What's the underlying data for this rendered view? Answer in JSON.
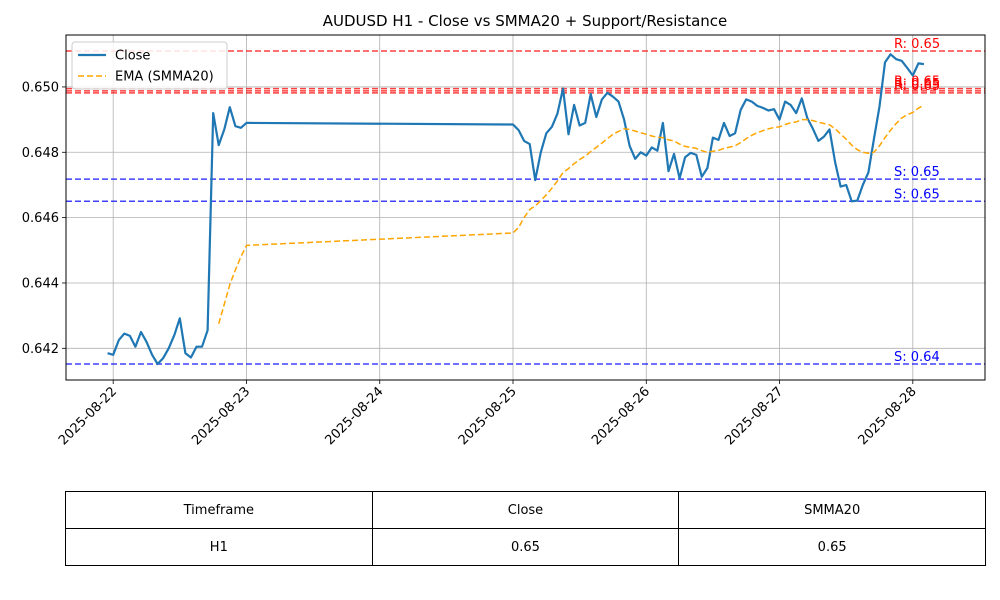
{
  "chart_data": {
    "type": "line",
    "title": "AUDUSD H1 - Close vs SMMA20 + Support/Resistance",
    "xlabel": "",
    "ylabel": "",
    "x_tick_labels": [
      "2025-08-22",
      "2025-08-23",
      "2025-08-24",
      "2025-08-25",
      "2025-08-26",
      "2025-08-27",
      "2025-08-28"
    ],
    "y_tick_labels": [
      "0.642",
      "0.644",
      "0.646",
      "0.648",
      "0.650"
    ],
    "ylim": [
      0.64103,
      0.65159
    ],
    "xlim": [
      "2025-08-21 15:30",
      "2025-08-28 13:00"
    ],
    "grid": true,
    "legend_position": "top-left",
    "series": [
      {
        "name": "Close",
        "color": "#1f77b4",
        "style": "solid",
        "points": [
          [
            "2025-08-21 23:00",
            0.64185
          ],
          [
            "2025-08-22 00:00",
            0.6418
          ],
          [
            "2025-08-22 01:00",
            0.64225
          ],
          [
            "2025-08-22 02:00",
            0.64245
          ],
          [
            "2025-08-22 03:00",
            0.64238
          ],
          [
            "2025-08-22 04:00",
            0.64205
          ],
          [
            "2025-08-22 05:00",
            0.6425
          ],
          [
            "2025-08-22 06:00",
            0.6422
          ],
          [
            "2025-08-22 07:00",
            0.6418
          ],
          [
            "2025-08-22 08:00",
            0.64152
          ],
          [
            "2025-08-22 09:00",
            0.6417
          ],
          [
            "2025-08-22 10:00",
            0.642
          ],
          [
            "2025-08-22 11:00",
            0.6424
          ],
          [
            "2025-08-22 12:00",
            0.64292
          ],
          [
            "2025-08-22 13:00",
            0.64185
          ],
          [
            "2025-08-22 14:00",
            0.64172
          ],
          [
            "2025-08-22 15:00",
            0.64205
          ],
          [
            "2025-08-22 16:00",
            0.64205
          ],
          [
            "2025-08-22 17:00",
            0.64255
          ],
          [
            "2025-08-22 18:00",
            0.6492
          ],
          [
            "2025-08-22 19:00",
            0.64822
          ],
          [
            "2025-08-22 20:00",
            0.6487
          ],
          [
            "2025-08-22 21:00",
            0.64938
          ],
          [
            "2025-08-22 22:00",
            0.6488
          ],
          [
            "2025-08-22 23:00",
            0.64875
          ],
          [
            "2025-08-23 00:00",
            0.6489
          ],
          [
            "2025-08-25 00:00",
            0.64885
          ],
          [
            "2025-08-25 01:00",
            0.64868
          ],
          [
            "2025-08-25 02:00",
            0.64835
          ],
          [
            "2025-08-25 03:00",
            0.64825
          ],
          [
            "2025-08-25 04:00",
            0.64715
          ],
          [
            "2025-08-25 05:00",
            0.648
          ],
          [
            "2025-08-25 06:00",
            0.64858
          ],
          [
            "2025-08-25 07:00",
            0.64878
          ],
          [
            "2025-08-25 08:00",
            0.64918
          ],
          [
            "2025-08-25 09:00",
            0.64995
          ],
          [
            "2025-08-25 10:00",
            0.64855
          ],
          [
            "2025-08-25 11:00",
            0.64945
          ],
          [
            "2025-08-25 12:00",
            0.64882
          ],
          [
            "2025-08-25 13:00",
            0.6489
          ],
          [
            "2025-08-25 14:00",
            0.64978
          ],
          [
            "2025-08-25 15:00",
            0.64908
          ],
          [
            "2025-08-25 16:00",
            0.64962
          ],
          [
            "2025-08-25 17:00",
            0.64982
          ],
          [
            "2025-08-25 18:00",
            0.6497
          ],
          [
            "2025-08-25 19:00",
            0.64955
          ],
          [
            "2025-08-25 20:00",
            0.649
          ],
          [
            "2025-08-25 21:00",
            0.6482
          ],
          [
            "2025-08-25 22:00",
            0.6478
          ],
          [
            "2025-08-25 23:00",
            0.648
          ],
          [
            "2025-08-26 00:00",
            0.6479
          ],
          [
            "2025-08-26 01:00",
            0.64815
          ],
          [
            "2025-08-26 02:00",
            0.64805
          ],
          [
            "2025-08-26 03:00",
            0.6489
          ],
          [
            "2025-08-26 04:00",
            0.64742
          ],
          [
            "2025-08-26 05:00",
            0.64795
          ],
          [
            "2025-08-26 06:00",
            0.6472
          ],
          [
            "2025-08-26 07:00",
            0.64785
          ],
          [
            "2025-08-26 08:00",
            0.64798
          ],
          [
            "2025-08-26 09:00",
            0.64792
          ],
          [
            "2025-08-26 10:00",
            0.64725
          ],
          [
            "2025-08-26 11:00",
            0.64752
          ],
          [
            "2025-08-26 12:00",
            0.64845
          ],
          [
            "2025-08-26 13:00",
            0.64838
          ],
          [
            "2025-08-26 14:00",
            0.6489
          ],
          [
            "2025-08-26 15:00",
            0.6485
          ],
          [
            "2025-08-26 16:00",
            0.64858
          ],
          [
            "2025-08-26 17:00",
            0.6493
          ],
          [
            "2025-08-26 18:00",
            0.64962
          ],
          [
            "2025-08-26 19:00",
            0.64955
          ],
          [
            "2025-08-26 20:00",
            0.64942
          ],
          [
            "2025-08-26 21:00",
            0.64936
          ],
          [
            "2025-08-26 22:00",
            0.64928
          ],
          [
            "2025-08-26 23:00",
            0.64932
          ],
          [
            "2025-08-27 00:00",
            0.649
          ],
          [
            "2025-08-27 01:00",
            0.64955
          ],
          [
            "2025-08-27 02:00",
            0.64945
          ],
          [
            "2025-08-27 03:00",
            0.6492
          ],
          [
            "2025-08-27 04:00",
            0.64965
          ],
          [
            "2025-08-27 05:00",
            0.64905
          ],
          [
            "2025-08-27 06:00",
            0.64872
          ],
          [
            "2025-08-27 07:00",
            0.64835
          ],
          [
            "2025-08-27 08:00",
            0.64848
          ],
          [
            "2025-08-27 09:00",
            0.6487
          ],
          [
            "2025-08-27 10:00",
            0.6477
          ],
          [
            "2025-08-27 11:00",
            0.64695
          ],
          [
            "2025-08-27 12:00",
            0.647
          ],
          [
            "2025-08-27 13:00",
            0.6465
          ],
          [
            "2025-08-27 14:00",
            0.64652
          ],
          [
            "2025-08-27 15:00",
            0.647
          ],
          [
            "2025-08-27 16:00",
            0.64738
          ],
          [
            "2025-08-27 17:00",
            0.6484
          ],
          [
            "2025-08-27 18:00",
            0.6494
          ],
          [
            "2025-08-27 19:00",
            0.65075
          ],
          [
            "2025-08-27 20:00",
            0.651
          ],
          [
            "2025-08-27 21:00",
            0.65085
          ],
          [
            "2025-08-27 22:00",
            0.6508
          ],
          [
            "2025-08-27 23:00",
            0.65058
          ],
          [
            "2025-08-28 00:00",
            0.65035
          ],
          [
            "2025-08-28 01:00",
            0.65072
          ],
          [
            "2025-08-28 02:00",
            0.6507
          ]
        ]
      },
      {
        "name": "EMA (SMMA20)",
        "color": "#ffa500",
        "style": "dashed",
        "points": [
          [
            "2025-08-22 19:00",
            0.64275
          ],
          [
            "2025-08-22 20:00",
            0.64335
          ],
          [
            "2025-08-22 21:00",
            0.64395
          ],
          [
            "2025-08-22 22:00",
            0.6444
          ],
          [
            "2025-08-22 23:00",
            0.6448
          ],
          [
            "2025-08-23 00:00",
            0.64515
          ],
          [
            "2025-08-25 00:00",
            0.64553
          ],
          [
            "2025-08-25 01:00",
            0.6457
          ],
          [
            "2025-08-25 02:00",
            0.646
          ],
          [
            "2025-08-25 03:00",
            0.64625
          ],
          [
            "2025-08-25 04:00",
            0.64636
          ],
          [
            "2025-08-25 05:00",
            0.64652
          ],
          [
            "2025-08-25 06:00",
            0.6467
          ],
          [
            "2025-08-25 07:00",
            0.6469
          ],
          [
            "2025-08-25 08:00",
            0.64712
          ],
          [
            "2025-08-25 09:00",
            0.64738
          ],
          [
            "2025-08-25 10:00",
            0.6475
          ],
          [
            "2025-08-25 11:00",
            0.64765
          ],
          [
            "2025-08-25 12:00",
            0.64778
          ],
          [
            "2025-08-25 13:00",
            0.64788
          ],
          [
            "2025-08-25 14:00",
            0.64802
          ],
          [
            "2025-08-25 15:00",
            0.64815
          ],
          [
            "2025-08-25 16:00",
            0.64828
          ],
          [
            "2025-08-25 17:00",
            0.64842
          ],
          [
            "2025-08-25 18:00",
            0.64855
          ],
          [
            "2025-08-25 19:00",
            0.64864
          ],
          [
            "2025-08-25 20:00",
            0.64872
          ],
          [
            "2025-08-25 21:00",
            0.6487
          ],
          [
            "2025-08-25 22:00",
            0.64865
          ],
          [
            "2025-08-25 23:00",
            0.6486
          ],
          [
            "2025-08-26 00:00",
            0.64855
          ],
          [
            "2025-08-26 01:00",
            0.6485
          ],
          [
            "2025-08-26 02:00",
            0.64846
          ],
          [
            "2025-08-26 03:00",
            0.64845
          ],
          [
            "2025-08-26 04:00",
            0.64838
          ],
          [
            "2025-08-26 05:00",
            0.64835
          ],
          [
            "2025-08-26 06:00",
            0.64825
          ],
          [
            "2025-08-26 07:00",
            0.64818
          ],
          [
            "2025-08-26 08:00",
            0.64815
          ],
          [
            "2025-08-26 09:00",
            0.64812
          ],
          [
            "2025-08-26 10:00",
            0.64805
          ],
          [
            "2025-08-26 11:00",
            0.648
          ],
          [
            "2025-08-26 12:00",
            0.64803
          ],
          [
            "2025-08-26 13:00",
            0.64806
          ],
          [
            "2025-08-26 14:00",
            0.64812
          ],
          [
            "2025-08-26 15:00",
            0.64816
          ],
          [
            "2025-08-26 16:00",
            0.6482
          ],
          [
            "2025-08-26 17:00",
            0.6483
          ],
          [
            "2025-08-26 18:00",
            0.64842
          ],
          [
            "2025-08-26 19:00",
            0.64852
          ],
          [
            "2025-08-26 20:00",
            0.6486
          ],
          [
            "2025-08-26 21:00",
            0.64866
          ],
          [
            "2025-08-26 22:00",
            0.64872
          ],
          [
            "2025-08-26 23:00",
            0.64876
          ],
          [
            "2025-08-27 00:00",
            0.64878
          ],
          [
            "2025-08-27 01:00",
            0.64885
          ],
          [
            "2025-08-27 02:00",
            0.6489
          ],
          [
            "2025-08-27 03:00",
            0.64893
          ],
          [
            "2025-08-27 04:00",
            0.649
          ],
          [
            "2025-08-27 05:00",
            0.649
          ],
          [
            "2025-08-27 06:00",
            0.64897
          ],
          [
            "2025-08-27 07:00",
            0.64892
          ],
          [
            "2025-08-27 08:00",
            0.64888
          ],
          [
            "2025-08-27 09:00",
            0.64884
          ],
          [
            "2025-08-27 10:00",
            0.64872
          ],
          [
            "2025-08-27 11:00",
            0.64856
          ],
          [
            "2025-08-27 12:00",
            0.6484
          ],
          [
            "2025-08-27 13:00",
            0.64822
          ],
          [
            "2025-08-27 14:00",
            0.64808
          ],
          [
            "2025-08-27 15:00",
            0.648
          ],
          [
            "2025-08-27 16:00",
            0.64797
          ],
          [
            "2025-08-27 17:00",
            0.648
          ],
          [
            "2025-08-27 18:00",
            0.6482
          ],
          [
            "2025-08-27 19:00",
            0.64845
          ],
          [
            "2025-08-27 20:00",
            0.64868
          ],
          [
            "2025-08-27 21:00",
            0.64888
          ],
          [
            "2025-08-27 22:00",
            0.64905
          ],
          [
            "2025-08-27 23:00",
            0.64915
          ],
          [
            "2025-08-28 00:00",
            0.64922
          ],
          [
            "2025-08-28 01:00",
            0.64935
          ],
          [
            "2025-08-28 02:00",
            0.64945
          ]
        ]
      }
    ],
    "levels": [
      {
        "type": "resistance",
        "value": 0.6511,
        "label": "R: 0.65",
        "color": "#ff0000"
      },
      {
        "type": "resistance",
        "value": 0.64995,
        "label": "R: 0.65",
        "color": "#ff0000"
      },
      {
        "type": "resistance",
        "value": 0.64988,
        "label": "R: 0.65",
        "color": "#ff0000"
      },
      {
        "type": "resistance",
        "value": 0.64982,
        "label": "R: 0.65",
        "color": "#ff0000"
      },
      {
        "type": "support",
        "value": 0.64718,
        "label": "S: 0.65",
        "color": "#0000ff"
      },
      {
        "type": "support",
        "value": 0.6465,
        "label": "S: 0.65",
        "color": "#0000ff"
      },
      {
        "type": "support",
        "value": 0.64152,
        "label": "S: 0.64",
        "color": "#0000ff"
      }
    ]
  },
  "table": {
    "headers": [
      "Timeframe",
      "Close",
      "SMMA20"
    ],
    "rows": [
      [
        "H1",
        "0.65",
        "0.65"
      ]
    ]
  }
}
